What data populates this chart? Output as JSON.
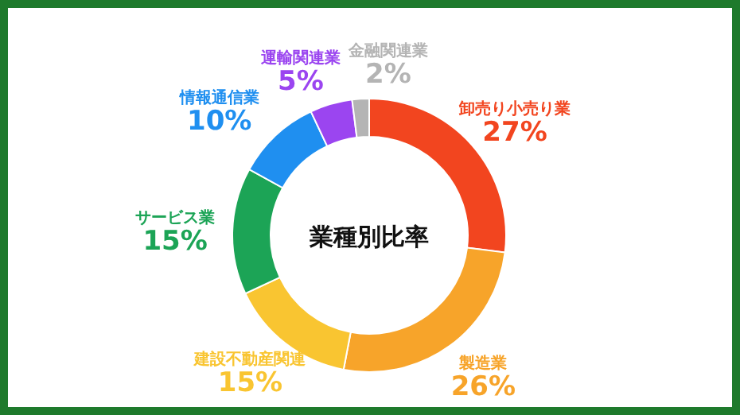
{
  "chart_data": {
    "type": "donut",
    "title": "業種別比率",
    "categories": [
      "卸売り小売り業",
      "製造業",
      "建設不動産関連",
      "サービス業",
      "情報通信業",
      "運輸関連業",
      "金融関連業"
    ],
    "values": [
      27,
      26,
      15,
      15,
      10,
      5,
      2
    ],
    "colors": [
      "#f2451f",
      "#f7a42a",
      "#f9c531",
      "#1ca456",
      "#1f8ff0",
      "#9b45f0",
      "#b4b4b4"
    ],
    "value_labels": [
      "27%",
      "26%",
      "15%",
      "15%",
      "10%",
      "5%",
      "2%"
    ]
  }
}
